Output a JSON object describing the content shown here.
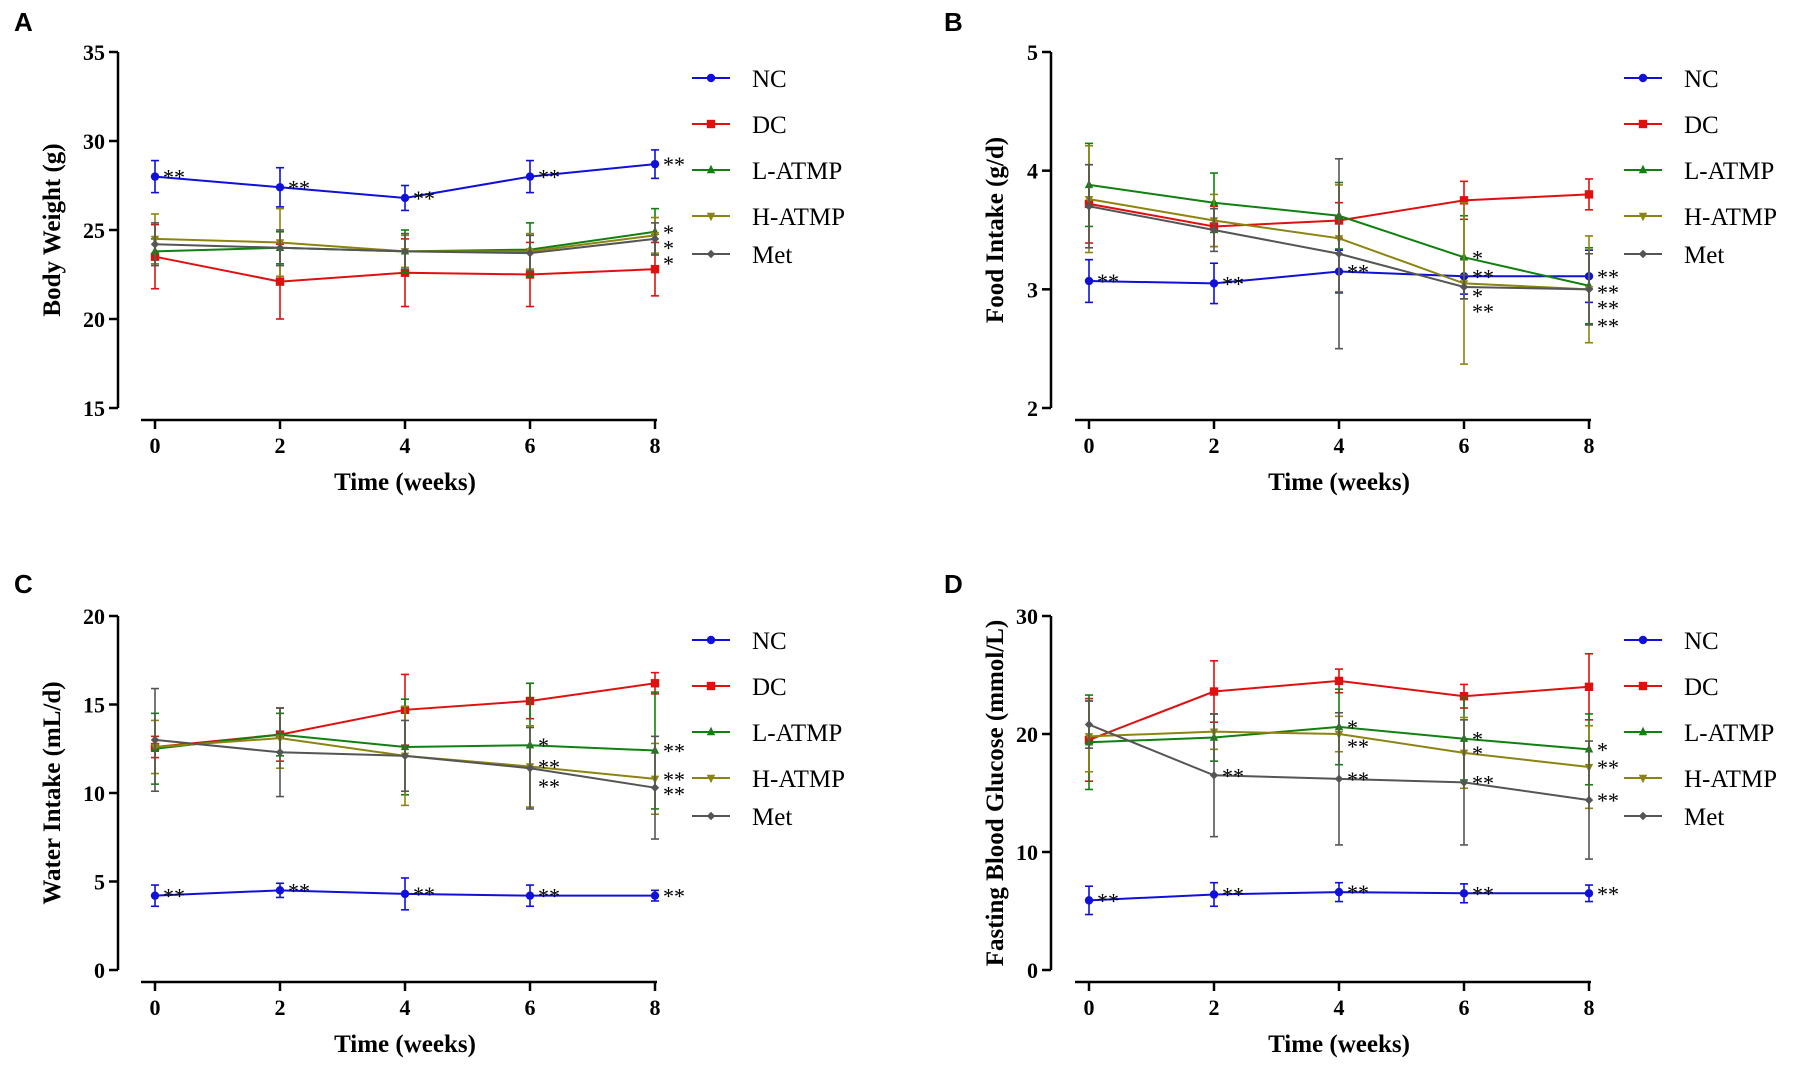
{
  "colors": {
    "NC": "#1010d8",
    "DC": "#e01010",
    "L-ATMP": "#108010",
    "H-ATMP": "#8c8410",
    "Met": "#555555"
  },
  "legend": [
    "NC",
    "DC",
    "L-ATMP",
    "H-ATMP",
    "Met"
  ],
  "chart_data": [
    {
      "panel": "A",
      "type": "line",
      "xlabel": "Time (weeks)",
      "ylabel": "Body Weight (g)",
      "x": [
        0,
        2,
        4,
        6,
        8
      ],
      "xticks": [
        "0",
        "2",
        "4",
        "6",
        "8"
      ],
      "ylim": [
        15,
        35
      ],
      "yticks": [
        15,
        20,
        25,
        30,
        35
      ],
      "series": [
        {
          "name": "NC",
          "marker": "circle",
          "values": [
            28.0,
            27.4,
            26.8,
            28.0,
            28.7
          ],
          "errors": [
            0.9,
            1.1,
            0.7,
            0.9,
            0.8
          ],
          "sig": [
            "**",
            "**",
            "**",
            "**",
            "**"
          ]
        },
        {
          "name": "DC",
          "marker": "square",
          "values": [
            23.5,
            22.1,
            22.6,
            22.5,
            22.8
          ],
          "errors": [
            1.8,
            2.1,
            1.9,
            1.8,
            1.5
          ],
          "sig": [
            "",
            "",
            "",
            "",
            ""
          ]
        },
        {
          "name": "L-ATMP",
          "marker": "triangle-up",
          "values": [
            23.8,
            24.0,
            23.8,
            23.9,
            24.9
          ],
          "errors": [
            0.7,
            0.9,
            1.2,
            1.5,
            1.3
          ],
          "sig": [
            "",
            "",
            "",
            "",
            "*"
          ]
        },
        {
          "name": "H-ATMP",
          "marker": "triangle-down",
          "values": [
            24.5,
            24.3,
            23.8,
            23.8,
            24.7
          ],
          "errors": [
            1.4,
            1.9,
            0.9,
            1.0,
            1.0
          ],
          "sig": [
            "",
            "",
            "",
            "",
            "*"
          ]
        },
        {
          "name": "Met",
          "marker": "diamond",
          "values": [
            24.2,
            24.0,
            23.8,
            23.7,
            24.5
          ],
          "errors": [
            1.2,
            1.0,
            1.0,
            1.0,
            0.9
          ],
          "sig": [
            "",
            "",
            "",
            "",
            "*"
          ]
        }
      ]
    },
    {
      "panel": "B",
      "type": "line",
      "xlabel": "Time (weeks)",
      "ylabel": "Food Intake (g/d)",
      "x": [
        0,
        2,
        4,
        6,
        8
      ],
      "xticks": [
        "0",
        "2",
        "4",
        "6",
        "8"
      ],
      "ylim": [
        2,
        5
      ],
      "yticks": [
        2,
        3,
        4,
        5
      ],
      "series": [
        {
          "name": "NC",
          "marker": "circle",
          "values": [
            3.07,
            3.05,
            3.15,
            3.11,
            3.11
          ],
          "errors": [
            0.18,
            0.17,
            0.18,
            0.15,
            0.22
          ],
          "sig": [
            "**",
            "**",
            "**",
            "**",
            "**"
          ]
        },
        {
          "name": "DC",
          "marker": "square",
          "values": [
            3.72,
            3.53,
            3.58,
            3.75,
            3.8
          ],
          "errors": [
            0.33,
            0.17,
            0.15,
            0.16,
            0.13
          ],
          "sig": [
            "",
            "",
            "",
            "",
            ""
          ]
        },
        {
          "name": "L-ATMP",
          "marker": "triangle-up",
          "values": [
            3.88,
            3.73,
            3.62,
            3.27,
            3.03
          ],
          "errors": [
            0.35,
            0.25,
            0.28,
            0.35,
            0.32
          ],
          "sig": [
            "",
            "",
            "",
            "*",
            "**"
          ]
        },
        {
          "name": "H-ATMP",
          "marker": "triangle-down",
          "values": [
            3.76,
            3.58,
            3.43,
            3.05,
            3.0
          ],
          "errors": [
            0.45,
            0.22,
            0.45,
            0.68,
            0.45
          ],
          "sig": [
            "",
            "",
            "",
            "*",
            "**"
          ]
        },
        {
          "name": "Met",
          "marker": "diamond",
          "values": [
            3.7,
            3.5,
            3.3,
            3.02,
            3.0
          ],
          "errors": [
            0.35,
            0.18,
            0.8,
            0.1,
            0.3
          ],
          "sig": [
            "",
            "",
            "",
            "**",
            "**"
          ]
        }
      ]
    },
    {
      "panel": "C",
      "type": "line",
      "xlabel": "Time (weeks)",
      "ylabel": "Water Intake (mL/d)",
      "x": [
        0,
        2,
        4,
        6,
        8
      ],
      "xticks": [
        "0",
        "2",
        "4",
        "6",
        "8"
      ],
      "ylim": [
        0,
        20
      ],
      "yticks": [
        0,
        5,
        10,
        15,
        20
      ],
      "series": [
        {
          "name": "NC",
          "marker": "circle",
          "values": [
            4.2,
            4.5,
            4.3,
            4.2,
            4.2
          ],
          "errors": [
            0.6,
            0.4,
            0.9,
            0.6,
            0.3
          ],
          "sig": [
            "**",
            "**",
            "**",
            "**",
            "**"
          ]
        },
        {
          "name": "DC",
          "marker": "square",
          "values": [
            12.6,
            13.3,
            14.7,
            15.2,
            16.2
          ],
          "errors": [
            0.6,
            1.5,
            2.0,
            1.0,
            0.6
          ],
          "sig": [
            "",
            "",
            "",
            "",
            ""
          ]
        },
        {
          "name": "L-ATMP",
          "marker": "triangle-up",
          "values": [
            12.5,
            13.3,
            12.6,
            12.7,
            12.4
          ],
          "errors": [
            2.0,
            1.2,
            2.7,
            3.5,
            3.3
          ],
          "sig": [
            "",
            "",
            "",
            "*",
            "**"
          ]
        },
        {
          "name": "H-ATMP",
          "marker": "triangle-down",
          "values": [
            12.6,
            13.1,
            12.1,
            11.5,
            10.8
          ],
          "errors": [
            1.5,
            1.7,
            2.8,
            2.3,
            2.0
          ],
          "sig": [
            "",
            "",
            "",
            "**",
            "**"
          ]
        },
        {
          "name": "Met",
          "marker": "diamond",
          "values": [
            13.0,
            12.3,
            12.1,
            11.4,
            10.3
          ],
          "errors": [
            2.9,
            2.5,
            2.0,
            2.3,
            2.9
          ],
          "sig": [
            "",
            "",
            "",
            "**",
            "**"
          ]
        }
      ]
    },
    {
      "panel": "D",
      "type": "line",
      "xlabel": "Time (weeks)",
      "ylabel": "Fasting Blood Glucose (mmol/L)",
      "x": [
        0,
        2,
        4,
        6,
        8
      ],
      "xticks": [
        "0",
        "2",
        "4",
        "6",
        "8"
      ],
      "ylim": [
        0,
        30
      ],
      "yticks": [
        0,
        10,
        20,
        30
      ],
      "series": [
        {
          "name": "NC",
          "marker": "circle",
          "values": [
            5.9,
            6.4,
            6.6,
            6.5,
            6.5
          ],
          "errors": [
            1.2,
            1.0,
            0.8,
            0.8,
            0.7
          ],
          "sig": [
            "**",
            "**",
            "**",
            "**",
            "**"
          ]
        },
        {
          "name": "DC",
          "marker": "square",
          "values": [
            19.5,
            23.6,
            24.5,
            23.2,
            24.0
          ],
          "errors": [
            3.5,
            2.6,
            1.0,
            1.0,
            2.8
          ],
          "sig": [
            "",
            "",
            "",
            "",
            ""
          ]
        },
        {
          "name": "L-ATMP",
          "marker": "triangle-up",
          "values": [
            19.3,
            19.7,
            20.6,
            19.6,
            18.7
          ],
          "errors": [
            4.0,
            2.0,
            3.2,
            3.5,
            3.0
          ],
          "sig": [
            "",
            "",
            "*",
            "*",
            "*"
          ]
        },
        {
          "name": "H-ATMP",
          "marker": "triangle-down",
          "values": [
            19.8,
            20.2,
            20.0,
            18.4,
            17.2
          ],
          "errors": [
            3.0,
            1.5,
            1.5,
            3.0,
            3.5
          ],
          "sig": [
            "",
            "",
            "**",
            "*",
            "**"
          ]
        },
        {
          "name": "Met",
          "marker": "diamond",
          "values": [
            20.8,
            16.5,
            16.2,
            15.9,
            14.4
          ],
          "errors": [
            2.0,
            5.2,
            5.6,
            5.3,
            5.0
          ],
          "sig": [
            "",
            "**",
            "**",
            "**",
            "**"
          ]
        }
      ]
    }
  ]
}
